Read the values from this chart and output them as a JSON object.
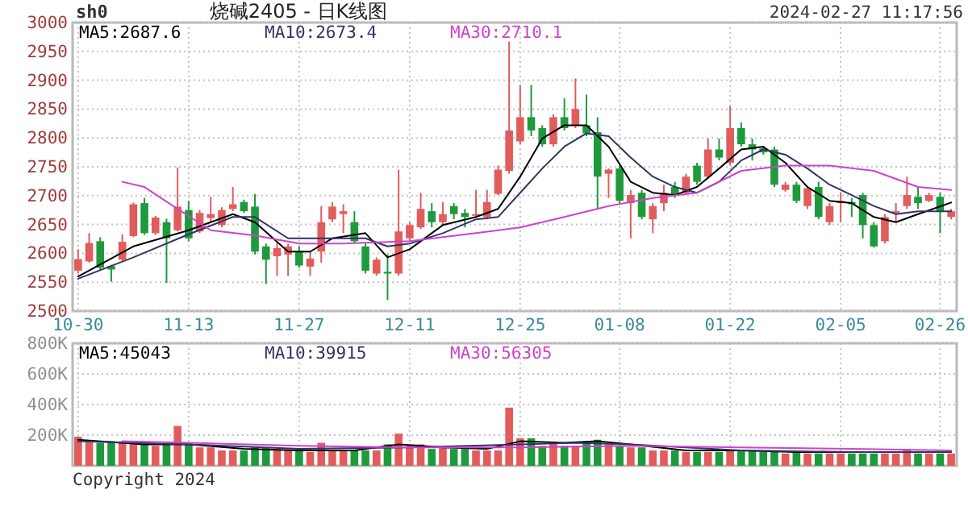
{
  "chart_data": [
    {
      "type": "candlestick",
      "title": "烧碱2405 - 日K线图",
      "annotations": [
        "sh0",
        "2024-02-27 11:17:56"
      ],
      "categories": [
        "10-30",
        null,
        null,
        null,
        null,
        null,
        null,
        null,
        null,
        null,
        "11-13",
        null,
        null,
        null,
        null,
        null,
        null,
        null,
        null,
        null,
        "11-27",
        null,
        null,
        null,
        null,
        null,
        null,
        null,
        null,
        null,
        "12-11",
        null,
        null,
        null,
        null,
        null,
        null,
        null,
        null,
        null,
        "12-25",
        null,
        null,
        null,
        null,
        null,
        null,
        null,
        null,
        "01-08",
        null,
        null,
        null,
        null,
        null,
        null,
        null,
        null,
        null,
        "01-22",
        null,
        null,
        null,
        null,
        null,
        null,
        null,
        null,
        null,
        "02-05",
        null,
        null,
        null,
        null,
        null,
        null,
        null,
        null,
        "02-26",
        null
      ],
      "ohlc": [
        [
          2570,
          2607,
          2565,
          2590
        ],
        [
          2586,
          2635,
          2584,
          2618
        ],
        [
          2621,
          2628,
          2570,
          2575
        ],
        [
          2578,
          2580,
          2551,
          2572
        ],
        [
          2589,
          2633,
          2586,
          2620
        ],
        [
          2630,
          2688,
          2628,
          2685
        ],
        [
          2687,
          2696,
          2632,
          2635
        ],
        [
          2635,
          2665,
          2632,
          2662
        ],
        [
          2654,
          2660,
          2549,
          2626
        ],
        [
          2640,
          2749,
          2638,
          2681
        ],
        [
          2675,
          2691,
          2621,
          2626
        ],
        [
          2638,
          2675,
          2635,
          2670
        ],
        [
          2661,
          2698,
          2654,
          2668
        ],
        [
          2649,
          2680,
          2645,
          2675
        ],
        [
          2677,
          2715,
          2673,
          2685
        ],
        [
          2689,
          2693,
          2670,
          2673
        ],
        [
          2681,
          2703,
          2598,
          2603
        ],
        [
          2612,
          2617,
          2547,
          2589
        ],
        [
          2595,
          2621,
          2561,
          2609
        ],
        [
          2598,
          2617,
          2561,
          2612
        ],
        [
          2603,
          2612,
          2575,
          2579
        ],
        [
          2577,
          2603,
          2561,
          2591
        ],
        [
          2603,
          2682,
          2584,
          2654
        ],
        [
          2659,
          2689,
          2654,
          2681
        ],
        [
          2668,
          2685,
          2635,
          2673
        ],
        [
          2654,
          2673,
          2617,
          2621
        ],
        [
          2612,
          2617,
          2565,
          2570
        ],
        [
          2565,
          2593,
          2561,
          2589
        ],
        [
          2568,
          2598,
          2519,
          2565
        ],
        [
          2565,
          2745,
          2561,
          2638
        ],
        [
          2626,
          2654,
          2621,
          2649
        ],
        [
          2645,
          2705,
          2642,
          2677
        ],
        [
          2673,
          2687,
          2645,
          2654
        ],
        [
          2654,
          2689,
          2649,
          2668
        ],
        [
          2682,
          2687,
          2659,
          2668
        ],
        [
          2670,
          2677,
          2645,
          2663
        ],
        [
          2665,
          2710,
          2663,
          2668
        ],
        [
          2663,
          2710,
          2659,
          2689
        ],
        [
          2703,
          2752,
          2701,
          2745
        ],
        [
          2743,
          2967,
          2738,
          2813
        ],
        [
          2794,
          2892,
          2789,
          2836
        ],
        [
          2836,
          2892,
          2803,
          2813
        ],
        [
          2817,
          2822,
          2785,
          2789
        ],
        [
          2789,
          2841,
          2785,
          2836
        ],
        [
          2836,
          2869,
          2813,
          2817
        ],
        [
          2822,
          2903,
          2817,
          2850
        ],
        [
          2822,
          2875,
          2803,
          2808
        ],
        [
          2810,
          2836,
          2677,
          2733
        ],
        [
          2738,
          2747,
          2696,
          2745
        ],
        [
          2747,
          2752,
          2687,
          2691
        ],
        [
          2687,
          2710,
          2626,
          2701
        ],
        [
          2705,
          2710,
          2659,
          2663
        ],
        [
          2659,
          2687,
          2635,
          2682
        ],
        [
          2687,
          2719,
          2673,
          2705
        ],
        [
          2715,
          2724,
          2696,
          2701
        ],
        [
          2705,
          2738,
          2701,
          2733
        ],
        [
          2752,
          2757,
          2719,
          2724
        ],
        [
          2733,
          2799,
          2729,
          2780
        ],
        [
          2780,
          2799,
          2761,
          2766
        ],
        [
          2757,
          2855,
          2752,
          2817
        ],
        [
          2817,
          2827,
          2785,
          2789
        ],
        [
          2789,
          2799,
          2761,
          2780
        ],
        [
          2782,
          2785,
          2771,
          2775
        ],
        [
          2780,
          2785,
          2715,
          2719
        ],
        [
          2710,
          2724,
          2707,
          2719
        ],
        [
          2719,
          2724,
          2687,
          2691
        ],
        [
          2682,
          2715,
          2677,
          2713
        ],
        [
          2715,
          2724,
          2659,
          2663
        ],
        [
          2654,
          2687,
          2649,
          2682
        ],
        [
          2687,
          2705,
          2654,
          2691
        ],
        [
          2689,
          2696,
          2663,
          2685
        ],
        [
          2701,
          2705,
          2626,
          2649
        ],
        [
          2649,
          2654,
          2610,
          2612
        ],
        [
          2621,
          2668,
          2617,
          2663
        ],
        [
          2670,
          2687,
          2654,
          2673
        ],
        [
          2682,
          2733,
          2677,
          2701
        ],
        [
          2698,
          2715,
          2677,
          2687
        ],
        [
          2691,
          2705,
          2689,
          2701
        ],
        [
          2698,
          2705,
          2635,
          2673
        ],
        [
          2663,
          2677,
          2659,
          2673
        ]
      ],
      "colors": [
        "#e25c5c",
        "#e25c5c",
        "#1e9a3c",
        "#1e9a3c",
        "#e25c5c",
        "#e25c5c",
        "#1e9a3c",
        "#e25c5c",
        "#1e9a3c",
        "#e25c5c",
        "#1e9a3c",
        "#e25c5c",
        "#e25c5c",
        "#e25c5c",
        "#e25c5c",
        "#1e9a3c",
        "#1e9a3c",
        "#1e9a3c",
        "#e25c5c",
        "#e25c5c",
        "#1e9a3c",
        "#e25c5c",
        "#e25c5c",
        "#e25c5c",
        "#e25c5c",
        "#1e9a3c",
        "#1e9a3c",
        "#e25c5c",
        "#1e9a3c",
        "#e25c5c",
        "#e25c5c",
        "#e25c5c",
        "#1e9a3c",
        "#e25c5c",
        "#1e9a3c",
        "#1e9a3c",
        "#e25c5c",
        "#e25c5c",
        "#e25c5c",
        "#e25c5c",
        "#e25c5c",
        "#1e9a3c",
        "#1e9a3c",
        "#e25c5c",
        "#1e9a3c",
        "#e25c5c",
        "#1e9a3c",
        "#1e9a3c",
        "#e25c5c",
        "#1e9a3c",
        "#e25c5c",
        "#1e9a3c",
        "#e25c5c",
        "#e25c5c",
        "#1e9a3c",
        "#e25c5c",
        "#1e9a3c",
        "#e25c5c",
        "#1e9a3c",
        "#e25c5c",
        "#1e9a3c",
        "#1e9a3c",
        "#1e9a3c",
        "#1e9a3c",
        "#e25c5c",
        "#1e9a3c",
        "#e25c5c",
        "#1e9a3c",
        "#e25c5c",
        "#e25c5c",
        "#1e9a3c",
        "#1e9a3c",
        "#1e9a3c",
        "#e25c5c",
        "#e25c5c",
        "#e25c5c",
        "#1e9a3c",
        "#e25c5c",
        "#1e9a3c",
        "#e25c5c"
      ],
      "series": [
        {
          "type": "line",
          "name": "MA5:2687.6",
          "color": "#000000",
          "values": [
            2560,
            null,
            null,
            null,
            null,
            2612,
            null,
            null,
            null,
            null,
            2640,
            null,
            null,
            null,
            2668,
            null,
            2654,
            null,
            null,
            2603,
            null,
            2603,
            null,
            2626,
            null,
            null,
            2635,
            null,
            2593,
            null,
            2607,
            null,
            null,
            2649,
            null,
            null,
            2663,
            null,
            2677,
            null,
            2733,
            null,
            2799,
            null,
            2822,
            null,
            2822,
            null,
            2785,
            null,
            2724,
            null,
            2705,
            null,
            2701,
            null,
            2715,
            null,
            2747,
            null,
            2780,
            null,
            2785,
            null,
            2757,
            null,
            2715,
            null,
            2691,
            null,
            2687,
            null,
            2663,
            null,
            2654,
            null,
            2668,
            null,
            null,
            2688
          ]
        },
        {
          "type": "line",
          "name": "MA10:2673.4",
          "color": "#333366",
          "values": [
            2556,
            null,
            null,
            null,
            null,
            2593,
            null,
            null,
            null,
            null,
            2633,
            null,
            null,
            null,
            2663,
            null,
            2663,
            null,
            null,
            2626,
            null,
            2626,
            null,
            2626,
            null,
            null,
            2626,
            null,
            2612,
            null,
            2617,
            null,
            null,
            2635,
            null,
            null,
            2659,
            null,
            2663,
            null,
            2705,
            null,
            2747,
            null,
            2785,
            null,
            2808,
            null,
            2803,
            null,
            2766,
            null,
            2733,
            null,
            2715,
            null,
            2705,
            null,
            2724,
            null,
            2761,
            null,
            2780,
            null,
            2771,
            null,
            2747,
            null,
            2719,
            null,
            2701,
            null,
            2682,
            null,
            2668,
            null,
            2673,
            null,
            null,
            2673
          ]
        },
        {
          "type": "line",
          "name": "MA30:2710.1",
          "color": "#cc44cc",
          "values": [
            null,
            null,
            null,
            null,
            2724,
            null,
            2715,
            null,
            null,
            2677,
            null,
            null,
            2640,
            null,
            null,
            null,
            2631,
            null,
            null,
            null,
            2617,
            null,
            null,
            null,
            2617,
            null,
            null,
            null,
            null,
            null,
            2621,
            null,
            null,
            null,
            null,
            null,
            2635,
            null,
            null,
            null,
            2645,
            null,
            null,
            null,
            2663,
            null,
            null,
            null,
            2682,
            null,
            null,
            null,
            2696,
            null,
            null,
            null,
            2705,
            null,
            null,
            null,
            2743,
            null,
            null,
            null,
            2752,
            null,
            null,
            null,
            2752,
            null,
            null,
            null,
            2743,
            null,
            null,
            null,
            2715,
            null,
            null,
            2710
          ]
        }
      ],
      "ylim": [
        2500,
        3000
      ],
      "yticks": [
        2500,
        2550,
        2600,
        2650,
        2700,
        2750,
        2800,
        2850,
        2900,
        2950,
        3000
      ],
      "grid": true,
      "legend": "top left"
    },
    {
      "type": "bar",
      "annotations": [
        "Copyright 2024"
      ],
      "tick_labels": "y",
      "categories": [
        null,
        null,
        null,
        null,
        null,
        null,
        null,
        null,
        null,
        null,
        null,
        null,
        null,
        null,
        null,
        null,
        null,
        null,
        null,
        null,
        null,
        null,
        null,
        null,
        null,
        null,
        null,
        null,
        null,
        null,
        null,
        null,
        null,
        null,
        null,
        null,
        null,
        null,
        null,
        null,
        null,
        null,
        null,
        null,
        null,
        null,
        null,
        null,
        null,
        null,
        null,
        null,
        null,
        null,
        null,
        null,
        null,
        null,
        null,
        null,
        null,
        null,
        null,
        null,
        null,
        null,
        null,
        null,
        null,
        null,
        null,
        null,
        null,
        null,
        null,
        null,
        null,
        null,
        null,
        null
      ],
      "values": [
        190000,
        160000,
        150000,
        160000,
        160000,
        160000,
        150000,
        130000,
        140000,
        260000,
        150000,
        120000,
        120000,
        100000,
        100000,
        100000,
        120000,
        120000,
        100000,
        100000,
        100000,
        90000,
        150000,
        100000,
        100000,
        100000,
        100000,
        100000,
        140000,
        210000,
        130000,
        140000,
        110000,
        120000,
        110000,
        110000,
        100000,
        100000,
        100000,
        380000,
        180000,
        180000,
        130000,
        150000,
        130000,
        130000,
        150000,
        170000,
        140000,
        130000,
        120000,
        120000,
        100000,
        100000,
        100000,
        90000,
        90000,
        90000,
        90000,
        100000,
        100000,
        100000,
        90000,
        90000,
        80000,
        90000,
        80000,
        80000,
        80000,
        80000,
        80000,
        80000,
        80000,
        80000,
        80000,
        110000,
        80000,
        80000,
        80000,
        80000
      ],
      "colors": [
        "#e25c5c",
        "#e25c5c",
        "#1e9a3c",
        "#1e9a3c",
        "#e25c5c",
        "#e25c5c",
        "#1e9a3c",
        "#e25c5c",
        "#1e9a3c",
        "#e25c5c",
        "#1e9a3c",
        "#e25c5c",
        "#e25c5c",
        "#e25c5c",
        "#e25c5c",
        "#1e9a3c",
        "#1e9a3c",
        "#1e9a3c",
        "#e25c5c",
        "#e25c5c",
        "#1e9a3c",
        "#e25c5c",
        "#e25c5c",
        "#e25c5c",
        "#e25c5c",
        "#1e9a3c",
        "#1e9a3c",
        "#e25c5c",
        "#1e9a3c",
        "#e25c5c",
        "#e25c5c",
        "#e25c5c",
        "#1e9a3c",
        "#e25c5c",
        "#1e9a3c",
        "#1e9a3c",
        "#e25c5c",
        "#e25c5c",
        "#e25c5c",
        "#e25c5c",
        "#e25c5c",
        "#1e9a3c",
        "#1e9a3c",
        "#e25c5c",
        "#1e9a3c",
        "#e25c5c",
        "#1e9a3c",
        "#1e9a3c",
        "#e25c5c",
        "#1e9a3c",
        "#e25c5c",
        "#1e9a3c",
        "#e25c5c",
        "#e25c5c",
        "#1e9a3c",
        "#e25c5c",
        "#1e9a3c",
        "#e25c5c",
        "#1e9a3c",
        "#e25c5c",
        "#1e9a3c",
        "#1e9a3c",
        "#1e9a3c",
        "#1e9a3c",
        "#e25c5c",
        "#1e9a3c",
        "#e25c5c",
        "#1e9a3c",
        "#e25c5c",
        "#e25c5c",
        "#1e9a3c",
        "#1e9a3c",
        "#1e9a3c",
        "#e25c5c",
        "#e25c5c",
        "#e25c5c",
        "#1e9a3c",
        "#e25c5c",
        "#1e9a3c",
        "#e25c5c"
      ],
      "series": [
        {
          "type": "line",
          "name": "MA5:45043",
          "color": "#000000",
          "values": [
            170000,
            null,
            null,
            null,
            null,
            null,
            140000,
            null,
            null,
            null,
            140000,
            null,
            null,
            null,
            null,
            110000,
            null,
            null,
            null,
            null,
            100000,
            null,
            null,
            null,
            null,
            100000,
            null,
            null,
            null,
            140000,
            null,
            null,
            null,
            120000,
            null,
            null,
            null,
            110000,
            null,
            null,
            160000,
            null,
            null,
            null,
            150000,
            null,
            null,
            160000,
            null,
            null,
            140000,
            null,
            null,
            null,
            null,
            100000,
            null,
            null,
            null,
            null,
            100000,
            null,
            null,
            null,
            null,
            90000,
            null,
            null,
            null,
            null,
            90000,
            null,
            null,
            null,
            null,
            90000,
            null,
            null,
            null,
            90000
          ]
        },
        {
          "type": "line",
          "name": "MA10:39915",
          "color": "#333366",
          "values": [
            160000,
            null,
            null,
            null,
            null,
            null,
            null,
            null,
            null,
            null,
            140000,
            null,
            null,
            null,
            null,
            null,
            null,
            null,
            null,
            null,
            110000,
            null,
            null,
            null,
            null,
            null,
            null,
            null,
            null,
            null,
            120000,
            null,
            null,
            null,
            null,
            null,
            null,
            null,
            null,
            null,
            140000,
            null,
            null,
            null,
            null,
            150000,
            null,
            null,
            null,
            null,
            140000,
            null,
            null,
            null,
            null,
            120000,
            null,
            null,
            null,
            null,
            100000,
            null,
            null,
            null,
            null,
            null,
            null,
            null,
            null,
            null,
            90000,
            null,
            null,
            null,
            null,
            null,
            null,
            null,
            null,
            90000
          ]
        },
        {
          "type": "line",
          "name": "MA30:56305",
          "color": "#cc44cc",
          "values": [
            null,
            null,
            null,
            null,
            160000,
            null,
            null,
            null,
            null,
            null,
            150000,
            null,
            null,
            null,
            null,
            null,
            null,
            null,
            null,
            null,
            130000,
            null,
            null,
            null,
            null,
            null,
            null,
            null,
            null,
            null,
            120000,
            null,
            null,
            null,
            null,
            null,
            null,
            null,
            null,
            null,
            120000,
            null,
            null,
            null,
            null,
            null,
            null,
            null,
            null,
            null,
            130000,
            null,
            null,
            null,
            null,
            null,
            null,
            null,
            null,
            null,
            120000,
            null,
            null,
            null,
            null,
            null,
            null,
            null,
            null,
            null,
            110000,
            null,
            null,
            null,
            null,
            null,
            null,
            null,
            null,
            100000
          ]
        }
      ],
      "ylim": [
        0,
        800000
      ],
      "yticks": [
        {
          "value": 200000,
          "label": "200K"
        },
        {
          "value": 400000,
          "label": "400K"
        },
        {
          "value": 600000,
          "label": "600K"
        },
        {
          "value": 800000,
          "label": "800K"
        }
      ],
      "grid": true,
      "legend": "top left"
    }
  ]
}
